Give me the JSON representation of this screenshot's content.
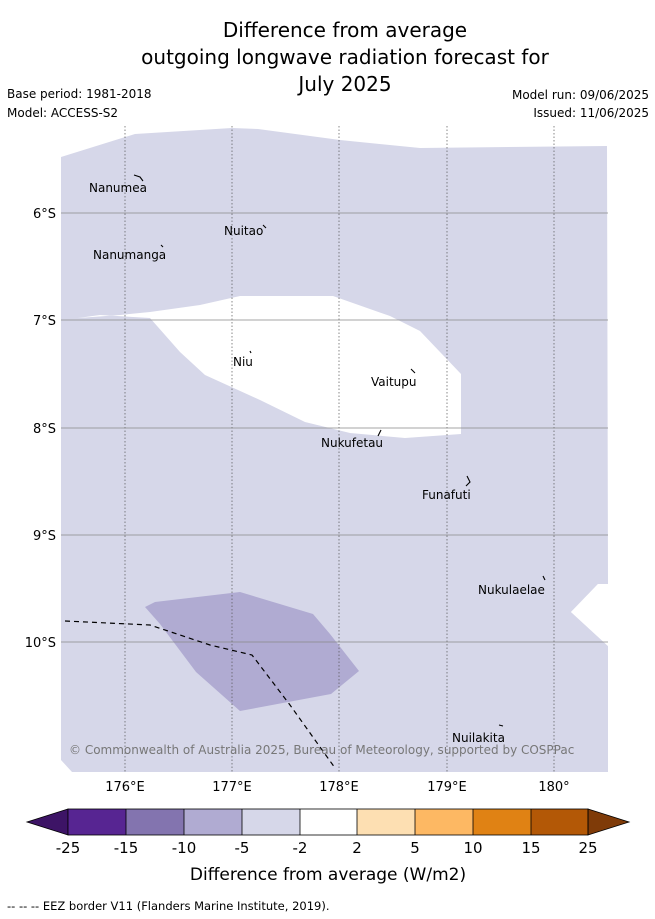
{
  "title": {
    "line1": "Difference from average",
    "line2": "outgoing longwave radiation forecast for",
    "line3": "July 2025"
  },
  "meta": {
    "base_period": "Base period: 1981-2018",
    "model": "Model: ACCESS-S2",
    "model_run": "Model run: 09/06/2025",
    "issued": "Issued: 11/06/2025"
  },
  "map": {
    "lon_ticks": [
      "176°E",
      "177°E",
      "178°E",
      "179°E",
      "180°"
    ],
    "lat_ticks": [
      "6°S",
      "7°S",
      "8°S",
      "9°S",
      "10°S"
    ],
    "islands": [
      {
        "name": "Nanumea"
      },
      {
        "name": "Nuitao"
      },
      {
        "name": "Nanumanga"
      },
      {
        "name": "Niu"
      },
      {
        "name": "Vaitupu"
      },
      {
        "name": "Nukufetau"
      },
      {
        "name": "Funafuti"
      },
      {
        "name": "Nukulaelae"
      },
      {
        "name": "Nuilakita"
      }
    ],
    "copyright": "© Commonwealth of Australia 2025, Bureau of Meteorology, supported by COSPPac",
    "colors": {
      "light_purple": "#d6d7e9",
      "medium_purple": "#b0abd2",
      "white": "#ffffff"
    }
  },
  "colorbar": {
    "ticks": [
      "-25",
      "-15",
      "-10",
      "-5",
      "-2",
      "2",
      "5",
      "10",
      "15",
      "25"
    ],
    "label": "Difference from average (W/m2)",
    "colors": [
      "#3d1466",
      "#572592",
      "#8374af",
      "#b0abd2",
      "#d6d7e9",
      "#ffffff",
      "#fddfb2",
      "#fdb863",
      "#e08214",
      "#b35806",
      "#7f3b08"
    ]
  },
  "footer": "-- -- -- EEZ border V11 (Flanders Marine Institute, 2019)."
}
